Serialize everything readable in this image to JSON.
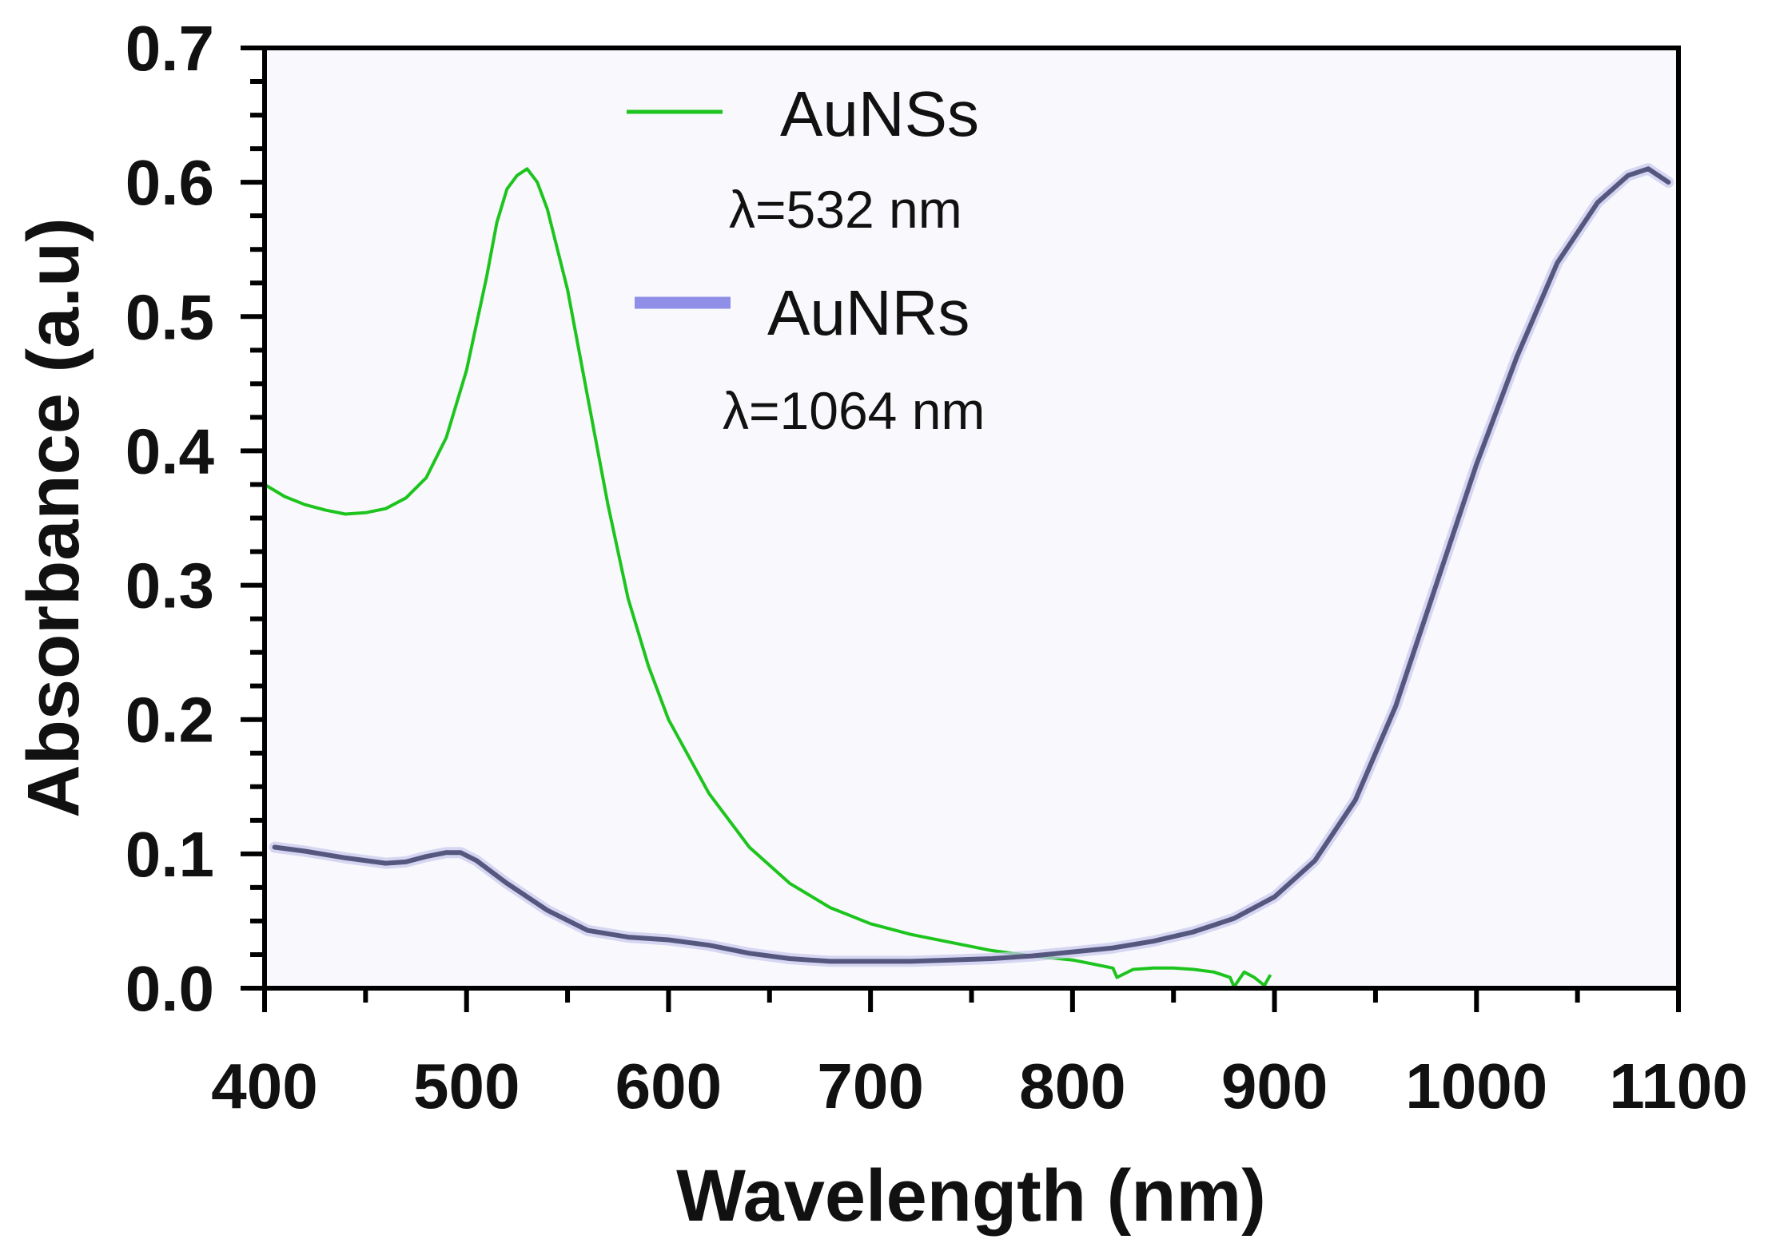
{
  "chart_data": {
    "type": "line",
    "title": "",
    "xlabel": "Wavelength (nm)",
    "ylabel": "Absorbance (a.u)",
    "xlim": [
      400,
      1100
    ],
    "ylim": [
      0.0,
      0.7
    ],
    "x_ticks": [
      "400",
      "500",
      "600",
      "700",
      "800",
      "900",
      "1000",
      "1100"
    ],
    "y_ticks": [
      "0.0",
      "0.1",
      "0.2",
      "0.3",
      "0.4",
      "0.5",
      "0.6",
      "0.7"
    ],
    "grid": false,
    "legend_position": "top-center",
    "series": [
      {
        "name": "AuNSs",
        "annotation": "λ=532 nm",
        "color": "#1ec41e",
        "x": [
          400,
          410,
          420,
          430,
          440,
          450,
          460,
          470,
          480,
          490,
          500,
          510,
          515,
          520,
          525,
          530,
          535,
          540,
          550,
          560,
          570,
          580,
          590,
          600,
          620,
          640,
          660,
          680,
          700,
          720,
          740,
          760,
          780,
          800,
          810,
          820,
          822,
          830,
          840,
          850,
          860,
          870,
          878,
          880,
          885,
          890,
          895,
          898
        ],
        "y": [
          0.375,
          0.366,
          0.36,
          0.356,
          0.353,
          0.354,
          0.357,
          0.365,
          0.38,
          0.41,
          0.46,
          0.53,
          0.57,
          0.595,
          0.605,
          0.61,
          0.6,
          0.58,
          0.52,
          0.44,
          0.36,
          0.29,
          0.24,
          0.2,
          0.145,
          0.105,
          0.078,
          0.06,
          0.048,
          0.04,
          0.034,
          0.028,
          0.024,
          0.021,
          0.018,
          0.015,
          0.008,
          0.014,
          0.015,
          0.015,
          0.014,
          0.012,
          0.008,
          0.001,
          0.012,
          0.008,
          0.002,
          0.01
        ]
      },
      {
        "name": "AuNRs",
        "annotation": "λ=1064 nm",
        "color": "#55577e",
        "legend_color": "#8f8fe8",
        "x": [
          405,
          420,
          440,
          460,
          470,
          480,
          490,
          497,
          505,
          520,
          540,
          560,
          580,
          600,
          620,
          640,
          660,
          680,
          700,
          720,
          740,
          760,
          780,
          800,
          820,
          840,
          860,
          880,
          900,
          920,
          940,
          960,
          980,
          1000,
          1020,
          1040,
          1060,
          1075,
          1085,
          1095
        ],
        "y": [
          0.105,
          0.102,
          0.097,
          0.093,
          0.094,
          0.098,
          0.101,
          0.101,
          0.095,
          0.078,
          0.058,
          0.043,
          0.038,
          0.036,
          0.032,
          0.026,
          0.022,
          0.02,
          0.02,
          0.02,
          0.021,
          0.022,
          0.024,
          0.027,
          0.03,
          0.035,
          0.042,
          0.052,
          0.068,
          0.095,
          0.14,
          0.21,
          0.3,
          0.39,
          0.47,
          0.54,
          0.585,
          0.605,
          0.61,
          0.6
        ]
      }
    ]
  }
}
